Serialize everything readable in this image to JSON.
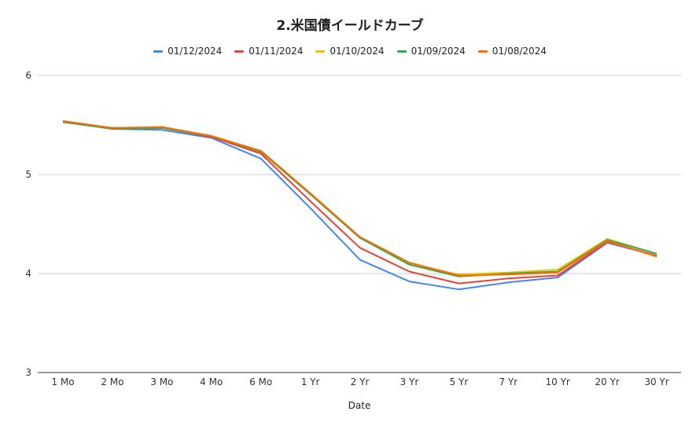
{
  "chart_data": {
    "type": "line",
    "title": "2.米国債イールドカーブ",
    "xlabel": "Date",
    "ylabel": "",
    "categories": [
      "1 Mo",
      "2 Mo",
      "3 Mo",
      "4 Mo",
      "6 Mo",
      "1 Yr",
      "2 Yr",
      "3 Yr",
      "5 Yr",
      "7 Yr",
      "10 Yr",
      "20 Yr",
      "30 Yr"
    ],
    "ylim": [
      3,
      6
    ],
    "yticks": [
      "3",
      "4",
      "5",
      "6"
    ],
    "grid": true,
    "legend_position": "top",
    "series": [
      {
        "name": "01/12/2024",
        "color": "#4285f4",
        "values": [
          5.53,
          5.46,
          5.45,
          5.37,
          5.16,
          4.66,
          4.14,
          3.92,
          3.84,
          3.91,
          3.96,
          4.31,
          4.18
        ]
      },
      {
        "name": "01/11/2024",
        "color": "#ea4335",
        "values": [
          5.54,
          5.47,
          5.47,
          5.38,
          5.21,
          4.73,
          4.26,
          4.02,
          3.9,
          3.95,
          3.98,
          4.32,
          4.18
        ]
      },
      {
        "name": "01/10/2024",
        "color": "#fbbc04",
        "values": [
          5.53,
          5.47,
          5.47,
          5.39,
          5.23,
          4.8,
          4.37,
          4.1,
          3.99,
          4.01,
          4.04,
          4.35,
          4.2
        ]
      },
      {
        "name": "01/09/2024",
        "color": "#34a853",
        "values": [
          5.53,
          5.46,
          5.47,
          5.39,
          5.23,
          4.8,
          4.36,
          4.09,
          3.97,
          4.0,
          4.02,
          4.34,
          4.2
        ]
      },
      {
        "name": "01/08/2024",
        "color": "#ff6d01",
        "values": [
          5.54,
          5.47,
          5.48,
          5.39,
          5.24,
          4.81,
          4.37,
          4.11,
          3.98,
          3.99,
          4.01,
          4.33,
          4.17
        ]
      }
    ]
  }
}
